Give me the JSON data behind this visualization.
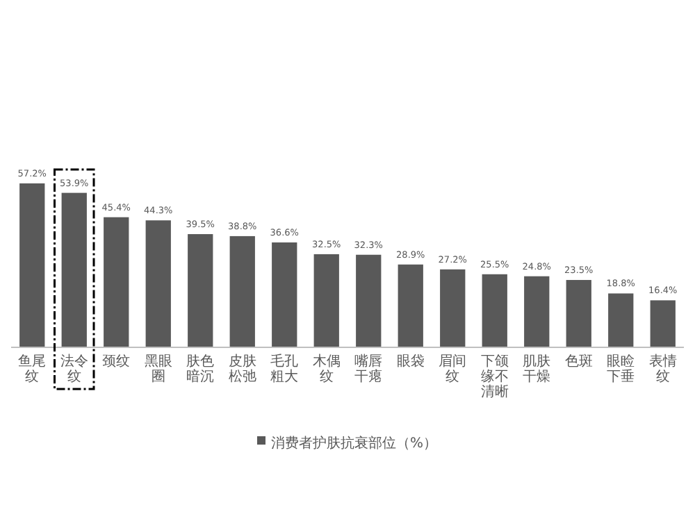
{
  "chart_data": {
    "type": "bar",
    "categories": [
      "鱼尾纹",
      "法令纹",
      "颈纹",
      "黑眼圈",
      "肤色暗沉",
      "皮肤松弛",
      "毛孔粗大",
      "木偶纹",
      "嘴唇干瘪",
      "眼袋",
      "眉间纹",
      "下颌缘不清晰",
      "肌肤干燥",
      "色斑",
      "眼睑下垂",
      "表情纹"
    ],
    "series": [
      {
        "name": "消费者护肤抗衰部位（%）",
        "color": "#595959",
        "values": [
          57.2,
          53.9,
          45.4,
          44.3,
          39.5,
          38.8,
          36.6,
          32.5,
          32.3,
          28.9,
          27.2,
          25.5,
          24.8,
          23.5,
          18.8,
          16.4
        ],
        "value_labels": [
          "57.2%",
          "53.9%",
          "45.4%",
          "44.3%",
          "39.5%",
          "38.8%",
          "36.6%",
          "32.5%",
          "32.3%",
          "28.9%",
          "27.2%",
          "25.5%",
          "24.8%",
          "23.5%",
          "18.8%",
          "16.4%"
        ]
      }
    ],
    "legend": "bottom"
  }
}
